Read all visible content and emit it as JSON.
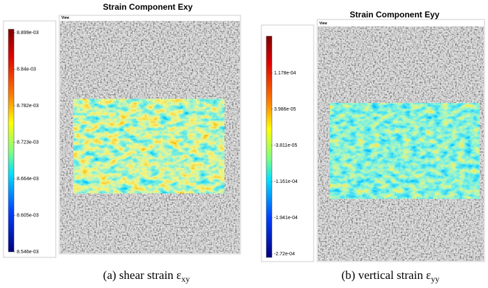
{
  "panels": [
    {
      "title": "Strain Component Exy",
      "view_label": "View",
      "colorbar_labels": [
        "8.899e-03",
        "8.84e-03",
        "8.782e-03",
        "8.723e-03",
        "8.664e-03",
        "8.605e-03",
        "8.546e-03"
      ],
      "caption": "(a) shear strain ε",
      "caption_sub": "xy"
    },
    {
      "title": "Strain Component Eyy",
      "view_label": "View",
      "colorbar_labels": [
        "1.178e-04",
        "3.986e-05",
        "-3.811e-05",
        "-1.161e-04",
        "-1.941e-04",
        "-2.72e-04"
      ],
      "caption": "(b) vertical strain ε",
      "caption_sub": "yy"
    }
  ]
}
